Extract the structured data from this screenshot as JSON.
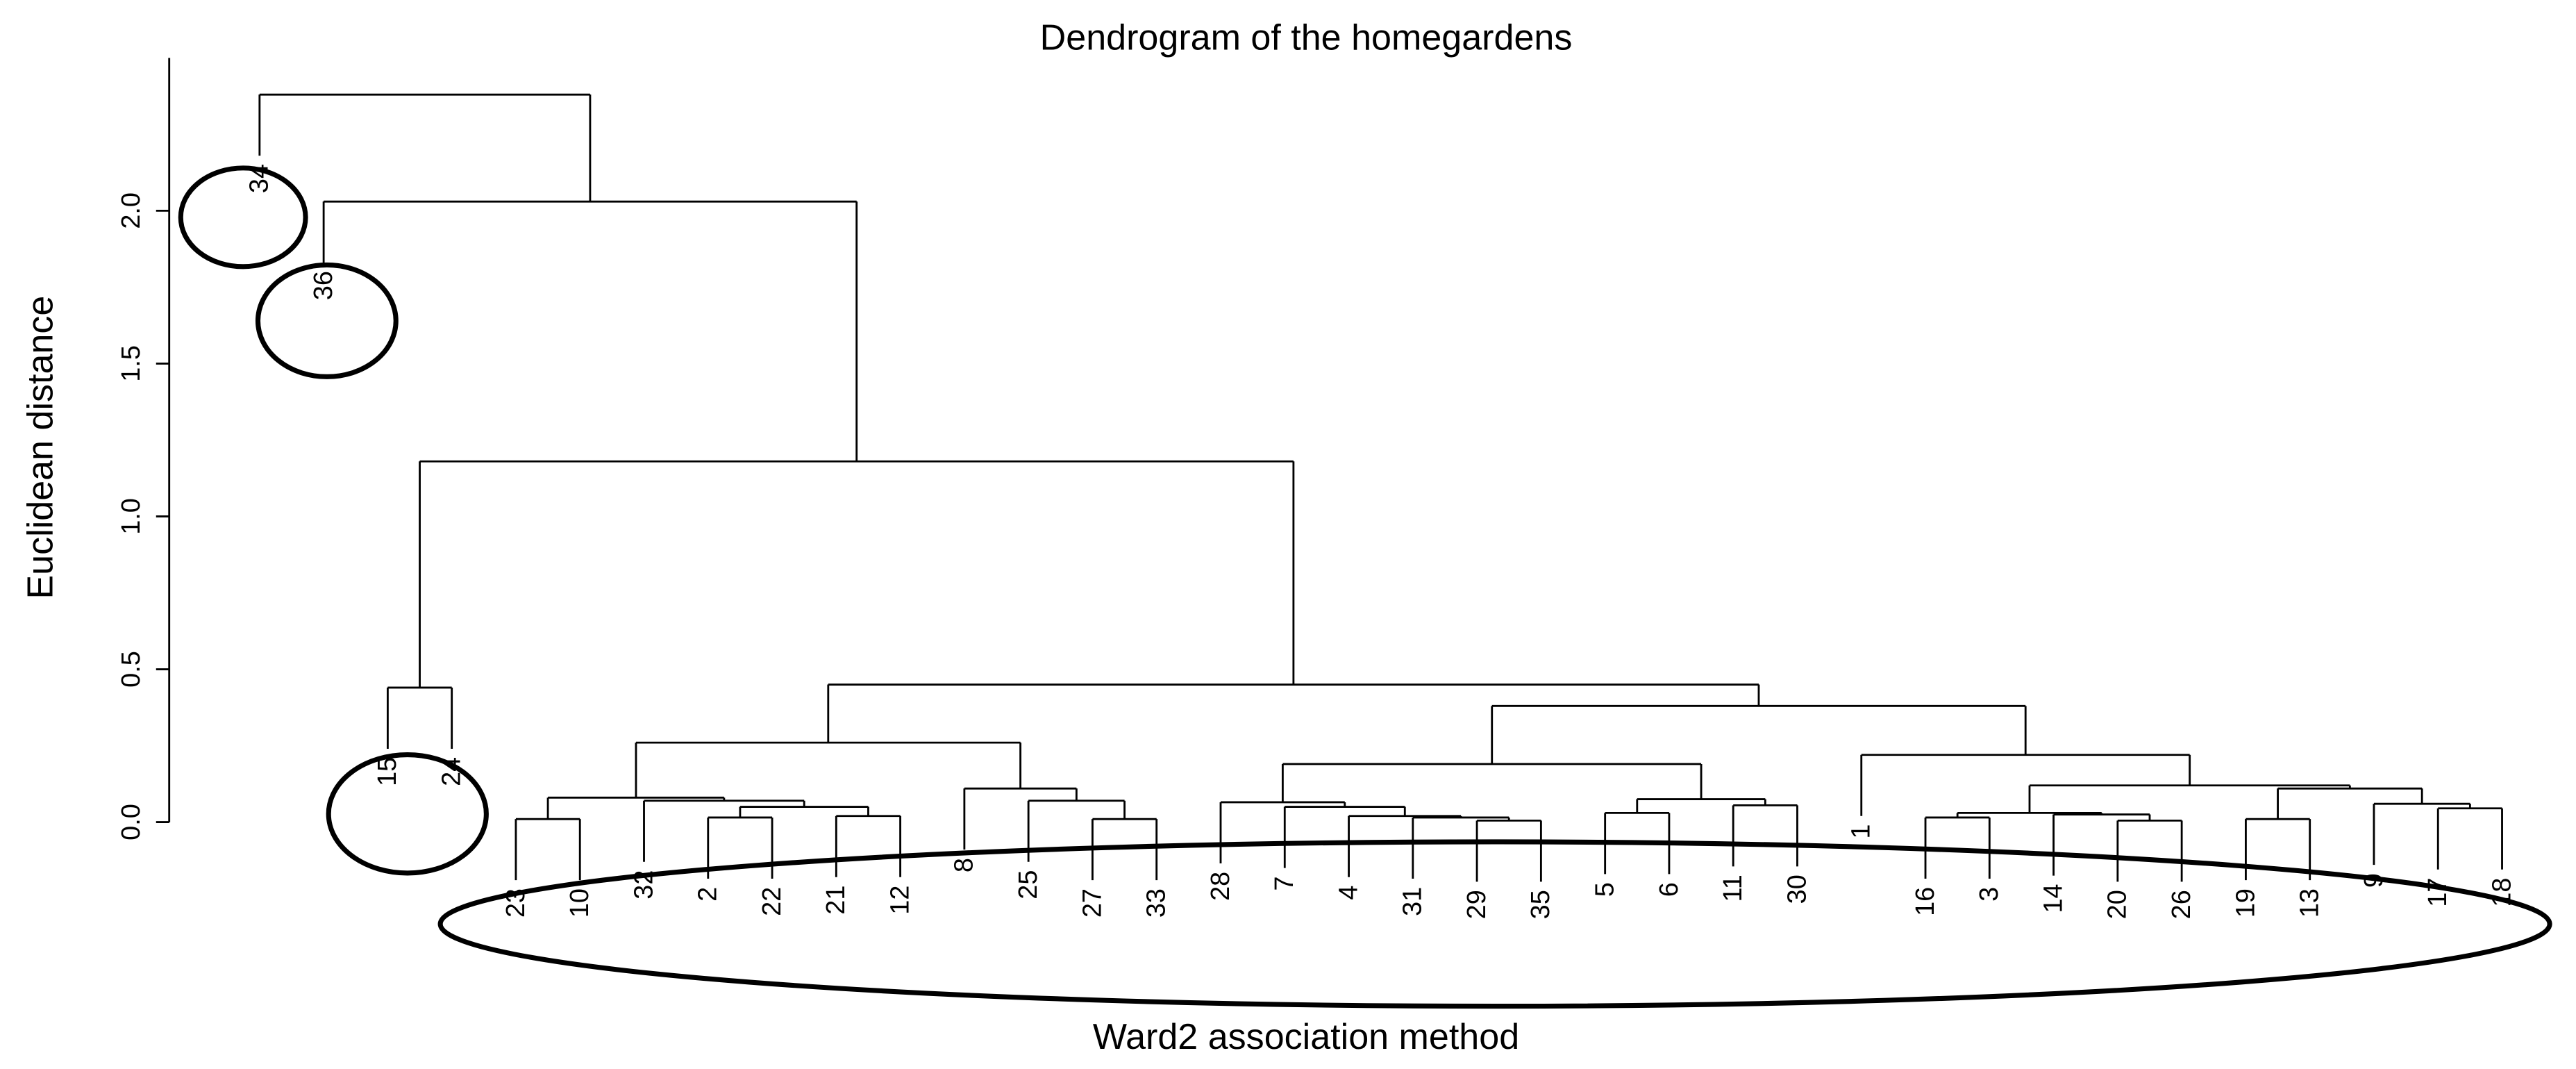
{
  "chart_data": {
    "type": "dendrogram",
    "title": "Dendrogram of the homegardens",
    "x_label": "Ward2 association method",
    "y_label": "Euclidean distance",
    "ylim": [
      0,
      2.5
    ],
    "yticks": [
      {
        "value": 0,
        "label": "0.0"
      },
      {
        "value": 0.5,
        "label": "0.5"
      },
      {
        "value": 1,
        "label": "1.0"
      },
      {
        "value": 1.5,
        "label": "1.5"
      },
      {
        "value": 2,
        "label": "2.0"
      }
    ],
    "color": "#000000",
    "tree": {
      "height": 2.38,
      "children": [
        {
          "label": "34"
        },
        {
          "height": 2.03,
          "children": [
            {
              "label": "36"
            },
            {
              "height": 1.18,
              "children": [
                {
                  "height": 0.44,
                  "children": [
                    {
                      "label": "15"
                    },
                    {
                      "label": "24"
                    }
                  ]
                },
                {
                  "height": 0.45,
                  "children": [
                    {
                      "height": 0.26,
                      "children": [
                        {
                          "height": 0.08,
                          "children": [
                            {
                              "height": 0.01,
                              "children": [
                                {
                                  "label": "23"
                                },
                                {
                                  "label": "10"
                                }
                              ]
                            },
                            {
                              "height": 0.07,
                              "children": [
                                {
                                  "label": "32"
                                },
                                {
                                  "height": 0.05,
                                  "children": [
                                    {
                                      "height": 0.015,
                                      "children": [
                                        {
                                          "label": "2"
                                        },
                                        {
                                          "label": "22"
                                        }
                                      ]
                                    },
                                    {
                                      "height": 0.02,
                                      "children": [
                                        {
                                          "label": "21"
                                        },
                                        {
                                          "label": "12"
                                        }
                                      ]
                                    }
                                  ]
                                }
                              ]
                            }
                          ]
                        },
                        {
                          "height": 0.11,
                          "children": [
                            {
                              "label": "8"
                            },
                            {
                              "height": 0.07,
                              "children": [
                                {
                                  "label": "25"
                                },
                                {
                                  "height": 0.01,
                                  "children": [
                                    {
                                      "label": "27"
                                    },
                                    {
                                      "label": "33"
                                    }
                                  ]
                                }
                              ]
                            }
                          ]
                        }
                      ]
                    },
                    {
                      "height": 0.38,
                      "children": [
                        {
                          "height": 0.19,
                          "children": [
                            {
                              "height": 0.065,
                              "children": [
                                {
                                  "label": "28"
                                },
                                {
                                  "height": 0.05,
                                  "children": [
                                    {
                                      "label": "7"
                                    },
                                    {
                                      "height": 0.02,
                                      "children": [
                                        {
                                          "label": "4"
                                        },
                                        {
                                          "height": 0.015,
                                          "children": [
                                            {
                                              "label": "31"
                                            },
                                            {
                                              "height": 0.005,
                                              "children": [
                                                {
                                                  "label": "29"
                                                },
                                                {
                                                  "label": "35"
                                                }
                                              ]
                                            }
                                          ]
                                        }
                                      ]
                                    }
                                  ]
                                }
                              ]
                            },
                            {
                              "height": 0.075,
                              "children": [
                                {
                                  "height": 0.03,
                                  "children": [
                                    {
                                      "label": "5"
                                    },
                                    {
                                      "label": "6"
                                    }
                                  ]
                                },
                                {
                                  "height": 0.055,
                                  "children": [
                                    {
                                      "label": "11"
                                    },
                                    {
                                      "label": "30"
                                    }
                                  ]
                                }
                              ]
                            }
                          ]
                        },
                        {
                          "height": 0.22,
                          "children": [
                            {
                              "label": "1"
                            },
                            {
                              "height": 0.12,
                              "children": [
                                {
                                  "height": 0.03,
                                  "children": [
                                    {
                                      "height": 0.015,
                                      "children": [
                                        {
                                          "label": "16"
                                        },
                                        {
                                          "label": "3"
                                        }
                                      ]
                                    },
                                    {
                                      "height": 0.025,
                                      "children": [
                                        {
                                          "label": "14"
                                        },
                                        {
                                          "height": 0.005,
                                          "children": [
                                            {
                                              "label": "20"
                                            },
                                            {
                                              "label": "26"
                                            }
                                          ]
                                        }
                                      ]
                                    }
                                  ]
                                },
                                {
                                  "height": 0.11,
                                  "children": [
                                    {
                                      "height": 0.01,
                                      "children": [
                                        {
                                          "label": "19"
                                        },
                                        {
                                          "label": "13"
                                        }
                                      ]
                                    },
                                    {
                                      "height": 0.06,
                                      "children": [
                                        {
                                          "label": "9"
                                        },
                                        {
                                          "height": 0.045,
                                          "children": [
                                            {
                                              "label": "17"
                                            },
                                            {
                                              "label": "18"
                                            }
                                          ]
                                        }
                                      ]
                                    }
                                  ]
                                }
                              ]
                            }
                          ]
                        }
                      ]
                    }
                  ]
                }
              ]
            }
          ]
        }
      ]
    }
  }
}
